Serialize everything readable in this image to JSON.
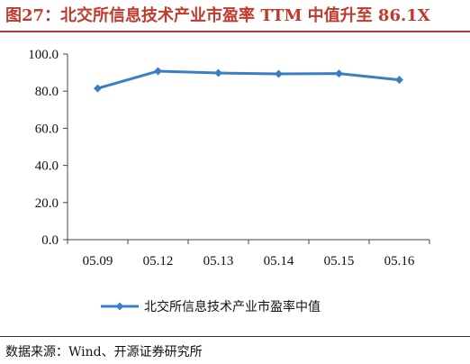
{
  "header": {
    "title": "图27：北交所信息技术产业市盈率 TTM 中值升至 86.1X"
  },
  "footer": {
    "source": "数据来源：Wind、开源证券研究所"
  },
  "colors": {
    "series": "#3a7fc6",
    "title": "#c0392b"
  },
  "chart_data": {
    "type": "line",
    "categories": [
      "05.09",
      "05.12",
      "05.13",
      "05.14",
      "05.15",
      "05.16"
    ],
    "series": [
      {
        "name": "北交所信息技术产业市盈率中值",
        "values": [
          81.5,
          90.8,
          89.8,
          89.3,
          89.5,
          86.1
        ]
      }
    ],
    "ylim": [
      0,
      100
    ],
    "yticks": [
      0,
      20,
      40,
      60,
      80,
      100
    ],
    "ytick_labels": [
      "0.0",
      "20.0",
      "40.0",
      "60.0",
      "80.0",
      "100.0"
    ],
    "grid": false,
    "legend": "bottom"
  }
}
